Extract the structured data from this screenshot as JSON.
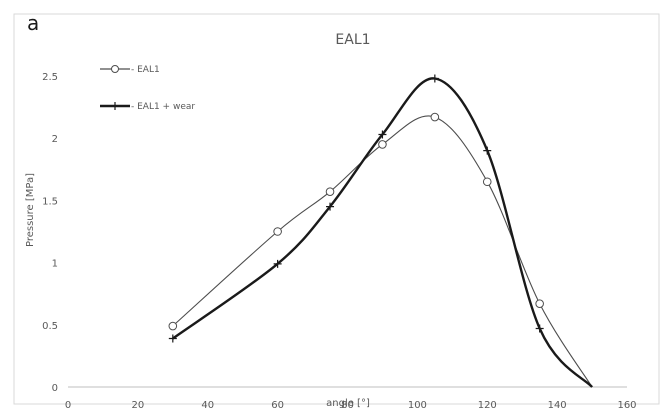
{
  "panel_label": "a",
  "chart_data": {
    "type": "line",
    "title": "EAL1",
    "xlabel": "angle [°]",
    "ylabel": "Pressure [MPa]",
    "xlim": [
      0,
      160
    ],
    "ylim": [
      0,
      2.5
    ],
    "x_ticks": [
      "0",
      "20",
      "40",
      "60",
      "80",
      "100",
      "120",
      "140",
      "160"
    ],
    "y_ticks": [
      "0",
      "0.5",
      "1",
      "1.5",
      "2",
      "2.5"
    ],
    "grid": false,
    "legend_position": "top-left",
    "series": [
      {
        "name": "- EAL1",
        "marker": "circle",
        "line_width": "thin",
        "color": "#4d4d4d",
        "x": [
          30,
          60,
          75,
          90,
          105,
          120,
          135,
          150
        ],
        "y": [
          0.49,
          1.25,
          1.57,
          1.95,
          2.17,
          1.65,
          0.67,
          0
        ]
      },
      {
        "name": "- EAL1 + wear",
        "marker": "plus",
        "line_width": "thick",
        "color": "#1a1a1a",
        "x": [
          30,
          60,
          75,
          90,
          105,
          120,
          135,
          150
        ],
        "y": [
          0.39,
          0.99,
          1.45,
          2.03,
          2.48,
          1.9,
          0.47,
          0
        ]
      }
    ]
  }
}
